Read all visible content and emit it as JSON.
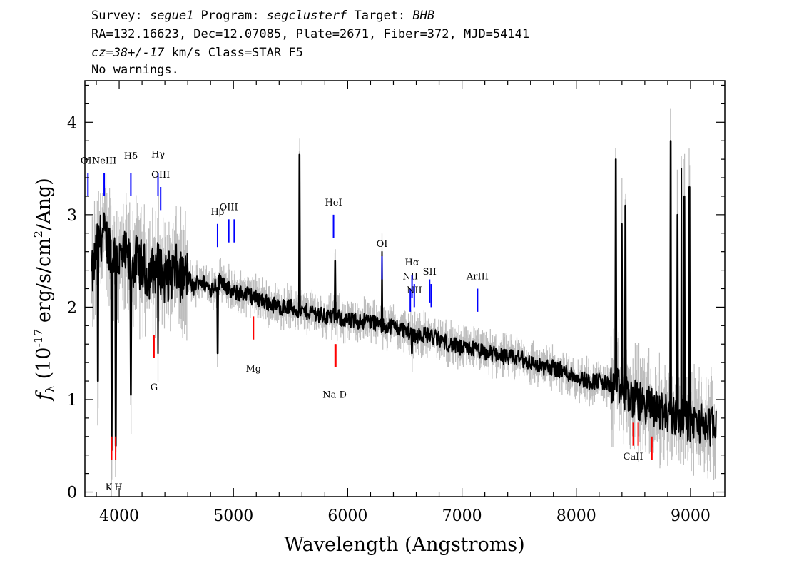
{
  "header": {
    "survey_label": "Survey: ",
    "survey": "segue1",
    "program_label": " Program: ",
    "program": "segclusterf",
    "target_label": " Target: ",
    "target": "BHB",
    "line2": "RA=132.16623, Dec=12.07085, Plate=2671, Fiber=372, MJD=54141",
    "cz": "cz=38+/-17",
    "line3_rest": " km/s Class=STAR F5",
    "line4": "No warnings."
  },
  "chart_data": {
    "type": "line",
    "title": "",
    "xlabel": "Wavelength (Angstroms)",
    "ylabel_prefix": "f",
    "ylabel_sub": "λ",
    "ylabel_main": " (10",
    "ylabel_exp": "-17",
    "ylabel_mid": " erg/s/cm",
    "ylabel_exp2": "2",
    "ylabel_end": "/Ang)",
    "xlim": [
      3700,
      9300
    ],
    "ylim": [
      -0.05,
      4.45
    ],
    "xticks": [
      4000,
      5000,
      6000,
      7000,
      8000,
      9000
    ],
    "yticks": [
      0,
      1,
      2,
      3,
      4
    ],
    "xtick_labels": [
      "4000",
      "5000",
      "6000",
      "7000",
      "8000",
      "9000"
    ],
    "ytick_labels": [
      "0",
      "1",
      "2",
      "3",
      "4"
    ],
    "colors": {
      "flux": "#000000",
      "error_band": "#bdbdbd",
      "emission": "#0000ff",
      "absorption": "#ff0000"
    },
    "series": [
      {
        "role": "smoothed_flux",
        "x": [
          3760,
          3800,
          3850,
          3900,
          3950,
          4000,
          4050,
          4100,
          4150,
          4200,
          4250,
          4300,
          4350,
          4400,
          4450,
          4500,
          4550,
          4600,
          4650,
          4700,
          4750,
          4800,
          4850,
          4900,
          4950,
          5000,
          5100,
          5200,
          5300,
          5400,
          5500,
          5600,
          5700,
          5800,
          5900,
          6000,
          6100,
          6200,
          6300,
          6400,
          6500,
          6600,
          6700,
          6800,
          6900,
          7000,
          7100,
          7200,
          7300,
          7400,
          7500,
          7600,
          7700,
          7800,
          7900,
          8000,
          8100,
          8200,
          8300,
          8400,
          8500,
          8600,
          8700,
          8800,
          8900,
          9000,
          9100,
          9200
        ],
        "y": [
          2.3,
          2.6,
          2.8,
          2.7,
          2.6,
          2.5,
          2.55,
          2.45,
          2.5,
          2.45,
          2.35,
          2.4,
          2.45,
          2.3,
          2.35,
          2.4,
          2.3,
          2.35,
          2.2,
          2.3,
          2.25,
          2.2,
          2.25,
          2.3,
          2.2,
          2.15,
          2.15,
          2.1,
          2.05,
          2.0,
          2.0,
          1.95,
          1.95,
          1.9,
          1.9,
          1.85,
          1.85,
          1.85,
          1.8,
          1.8,
          1.75,
          1.7,
          1.7,
          1.65,
          1.6,
          1.55,
          1.55,
          1.5,
          1.5,
          1.45,
          1.45,
          1.4,
          1.35,
          1.35,
          1.3,
          1.25,
          1.2,
          1.2,
          1.15,
          1.1,
          1.0,
          0.95,
          0.9,
          0.85,
          0.8,
          0.75,
          0.75,
          0.7
        ]
      },
      {
        "role": "features",
        "x": [
          3815,
          3935,
          3970,
          4102,
          4340,
          4861,
          5577,
          5890,
          6300,
          6563,
          8345,
          8400,
          8430,
          8827,
          8885,
          8920,
          8945,
          8990
        ],
        "y": [
          1.2,
          0.45,
          0.5,
          1.05,
          1.5,
          1.5,
          3.65,
          2.5,
          2.6,
          1.5,
          3.6,
          2.9,
          3.1,
          3.8,
          3.0,
          3.5,
          3.2,
          3.3
        ]
      }
    ],
    "emission_lines": [
      {
        "label": "OII",
        "x": 3727
      },
      {
        "label": "NeIII",
        "x": 3869
      },
      {
        "label": "Hδ",
        "x": 4102
      },
      {
        "label": "Hγ",
        "x": 4340
      },
      {
        "label": "OIII",
        "x": 4363
      },
      {
        "label": "Hβ",
        "x": 4861
      },
      {
        "label": "OIII",
        "x": 4959
      },
      {
        "label": "OIII",
        "x": 5007
      },
      {
        "label": "HeI",
        "x": 5876
      },
      {
        "label": "OI",
        "x": 6300
      },
      {
        "label": "NII",
        "x": 6548
      },
      {
        "label": "Hα",
        "x": 6563
      },
      {
        "label": "NII",
        "x": 6583
      },
      {
        "label": "SII",
        "x": 6717
      },
      {
        "label": "SII",
        "x": 6731
      },
      {
        "label": "ArIII",
        "x": 7136
      }
    ],
    "absorption_lines": [
      {
        "label": "K",
        "x": 3934
      },
      {
        "label": "H",
        "x": 3969
      },
      {
        "label": "G",
        "x": 4305
      },
      {
        "label": "Mg",
        "x": 5175
      },
      {
        "label": "Na",
        "x": 5890
      },
      {
        "label": "D",
        "x": 5896
      },
      {
        "label": "CaII",
        "x": 8498
      },
      {
        "label": "CaII",
        "x": 8542
      },
      {
        "label": "CaII",
        "x": 8662
      }
    ]
  }
}
